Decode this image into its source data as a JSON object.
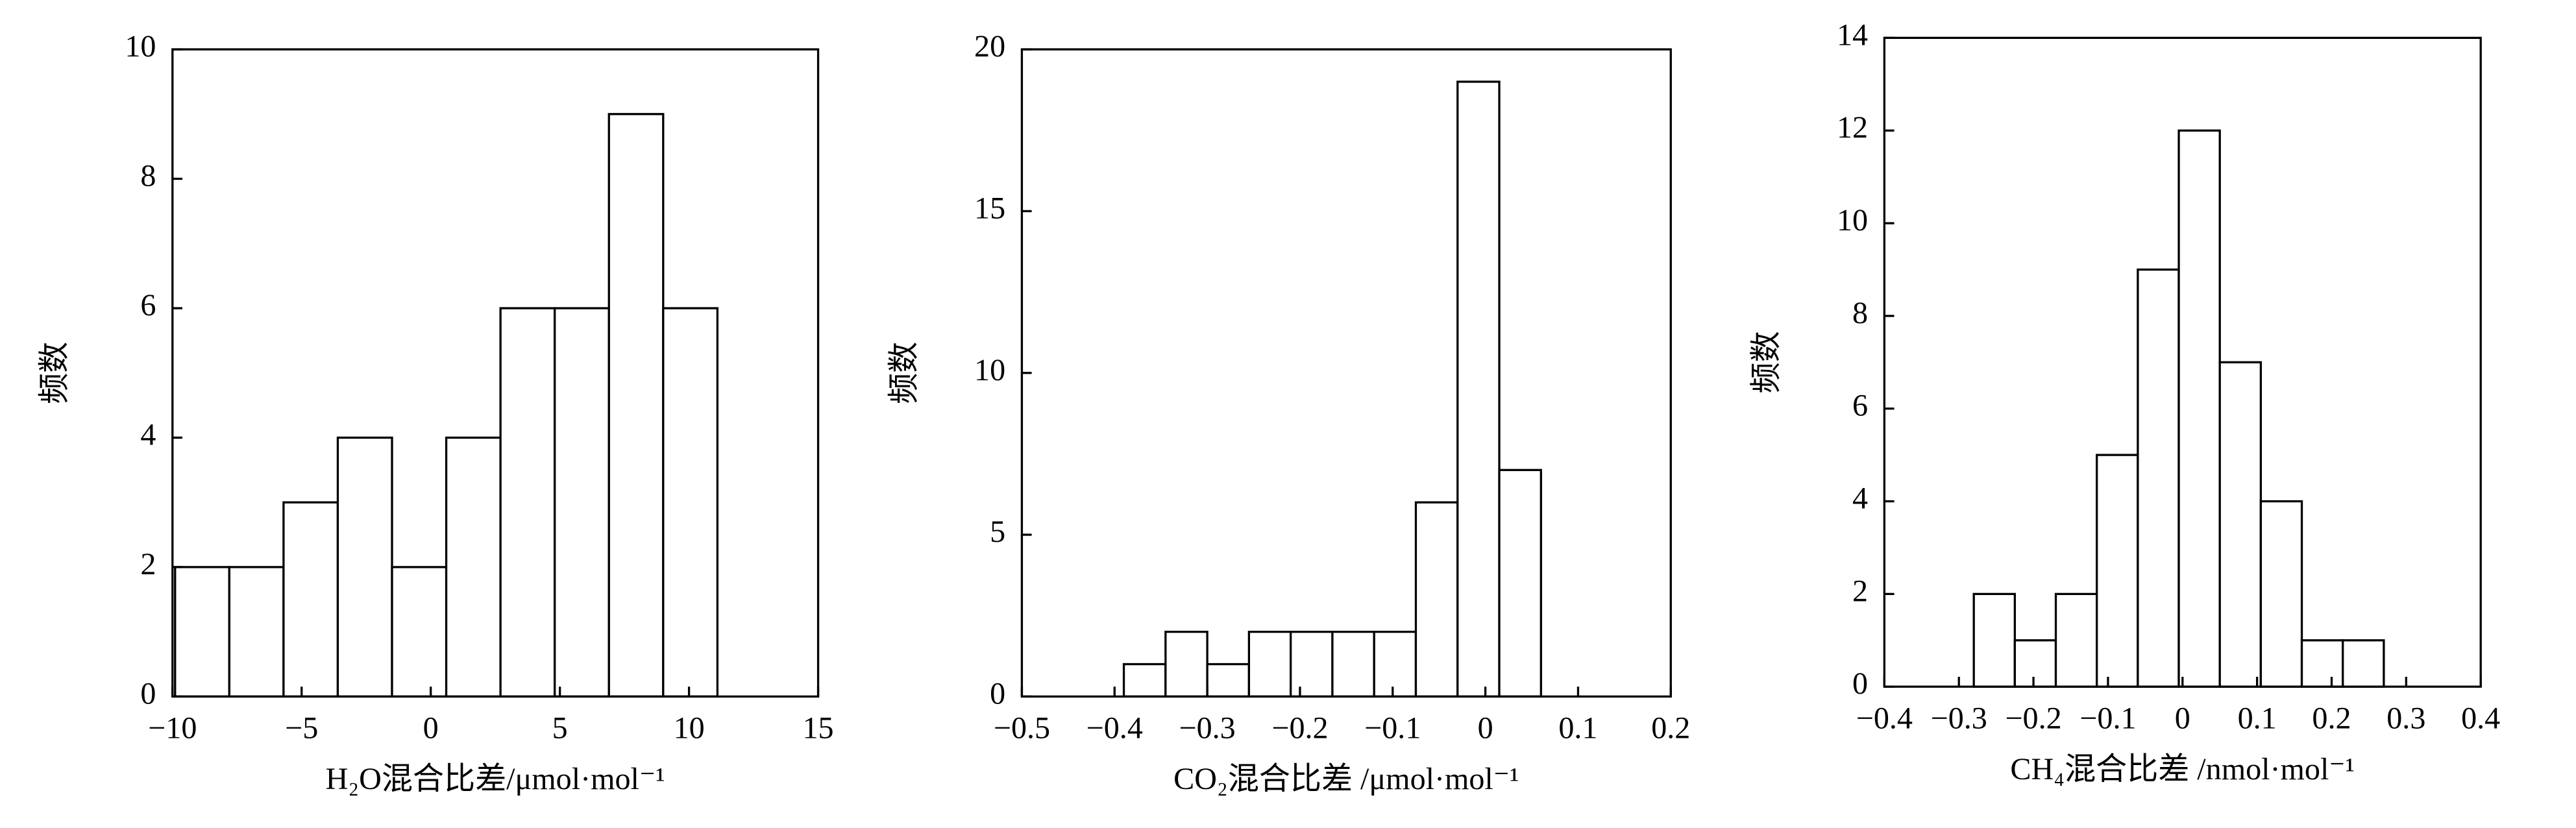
{
  "chart_data": [
    {
      "type": "histogram",
      "xlabel": "H₂O混合比差/μmol·mol⁻¹",
      "ylabel": "频数",
      "bins": [
        -9.9,
        -7.8,
        -5.7,
        -3.6,
        -1.5,
        0.6,
        2.7,
        4.8,
        6.9,
        9.0,
        11.1
      ],
      "values": [
        2,
        2,
        3,
        4,
        2,
        4,
        6,
        6,
        9,
        6
      ],
      "xlim": [
        -10,
        15
      ],
      "xticks": [
        {
          "value": -10,
          "label": "−10"
        },
        {
          "value": -5,
          "label": "−5"
        },
        0,
        5,
        10,
        15
      ],
      "ylim": [
        0,
        10
      ],
      "yticks": [
        0,
        2,
        4,
        6,
        8,
        10
      ],
      "color": "#ffffff"
    },
    {
      "type": "histogram",
      "xlabel": "CO₂混合比差 /μmol·mol⁻¹",
      "ylabel": "频数",
      "bins": [
        -0.39,
        -0.345,
        -0.3,
        -0.255,
        -0.21,
        -0.165,
        -0.12,
        -0.075,
        -0.03,
        0.015,
        0.06
      ],
      "values": [
        1,
        2,
        1,
        2,
        2,
        2,
        2,
        6,
        19,
        7
      ],
      "xlim": [
        -0.5,
        0.2
      ],
      "xticks": [
        {
          "value": -0.5,
          "label": "−0.5"
        },
        {
          "value": -0.4,
          "label": "−0.4"
        },
        {
          "value": -0.3,
          "label": "−0.3"
        },
        {
          "value": -0.2,
          "label": "−0.2"
        },
        {
          "value": -0.1,
          "label": "−0.1"
        },
        0,
        0.1,
        0.2
      ],
      "ylim": [
        0,
        20
      ],
      "yticks": [
        0,
        5,
        10,
        15,
        20
      ],
      "color": "#ffffff"
    },
    {
      "type": "histogram",
      "xlabel": "CH₄混合比差 /nmol·mol⁻¹",
      "ylabel": "频数",
      "bins": [
        -0.28,
        -0.225,
        -0.17,
        -0.115,
        -0.06,
        -0.005,
        0.05,
        0.105,
        0.16,
        0.215,
        0.27
      ],
      "values": [
        2,
        1,
        2,
        5,
        9,
        12,
        7,
        4,
        1,
        1
      ],
      "xlim": [
        -0.4,
        0.4
      ],
      "xticks": [
        {
          "value": -0.4,
          "label": "−0.4"
        },
        {
          "value": -0.3,
          "label": "−0.3"
        },
        {
          "value": -0.2,
          "label": "−0.2"
        },
        {
          "value": -0.1,
          "label": "−0.1"
        },
        0,
        0.1,
        0.2,
        0.3,
        0.4
      ],
      "ylim": [
        0,
        14
      ],
      "yticks": [
        0,
        2,
        4,
        6,
        8,
        10,
        12,
        14
      ],
      "color": "#ffffff"
    }
  ]
}
